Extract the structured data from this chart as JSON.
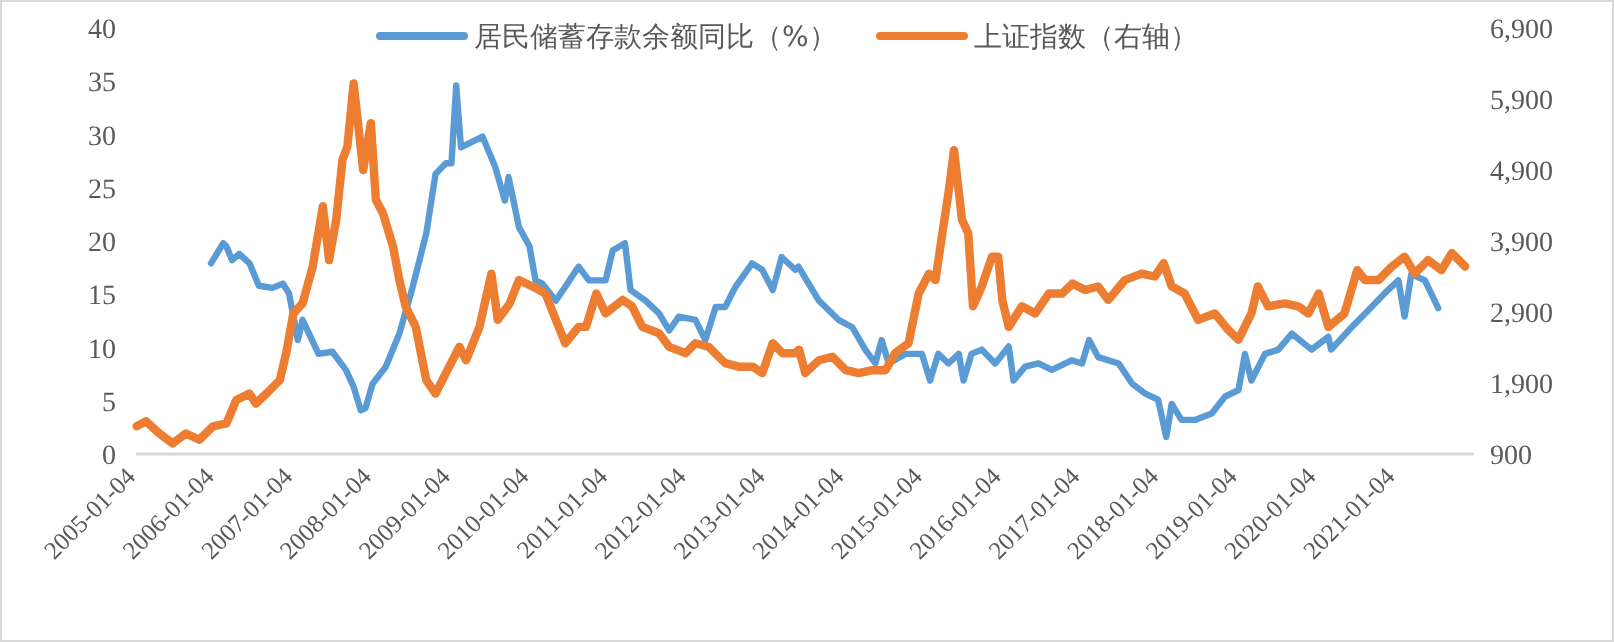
{
  "chart_data": {
    "type": "line",
    "legend": "top",
    "grid": false,
    "marker": "none",
    "line_style": "solid",
    "xlim": [
      "2005-01-01",
      "2022-01-01"
    ],
    "xticks": [
      "2005-01-04",
      "2006-01-04",
      "2007-01-04",
      "2008-01-04",
      "2009-01-04",
      "2010-01-04",
      "2011-01-04",
      "2012-01-04",
      "2013-01-04",
      "2014-01-04",
      "2015-01-04",
      "2016-01-04",
      "2017-01-04",
      "2018-01-04",
      "2019-01-04",
      "2020-01-04",
      "2021-01-04"
    ],
    "ylim": [
      0,
      40
    ],
    "yticks": [
      0,
      5,
      10,
      15,
      20,
      25,
      30,
      35,
      40
    ],
    "y2lim": [
      900,
      6900
    ],
    "y2ticks": [
      900,
      {
        "value": 1900,
        "label": "1,900"
      },
      {
        "value": 2900,
        "label": "2,900"
      },
      {
        "value": 3900,
        "label": "3,900"
      },
      {
        "value": 4900,
        "label": "4,900"
      },
      {
        "value": 5900,
        "label": "5,900"
      },
      {
        "value": 6900,
        "label": "6,900"
      }
    ],
    "series": [
      {
        "name": "居民储蓄存款余额同比（%）",
        "color": "#5b9bd5",
        "x": [
          "2005-12-15",
          "2006-02-10",
          "2006-02-24",
          "2006-03-23",
          "2006-04-25",
          "2006-06-12",
          "2006-07-25",
          "2006-09-26",
          "2006-11-13",
          "2006-12-12",
          "2007-01-22",
          "2007-02-13",
          "2007-04-28",
          "2007-07-01",
          "2007-09-02",
          "2007-10-08",
          "2007-11-10",
          "2007-12-02",
          "2008-01-04",
          "2008-03-05",
          "2008-05-07",
          "2008-07-08",
          "2008-09-09",
          "2008-10-22",
          "2008-12-09",
          "2009-01-04",
          "2009-01-26",
          "2009-02-17",
          "2009-05-28",
          "2009-07-25",
          "2009-09-09",
          "2009-09-26",
          "2009-11-13",
          "2010-01-01",
          "2010-01-29",
          "2010-03-02",
          "2010-05-03",
          "2010-06-16",
          "2010-08-17",
          "2010-10-04",
          "2010-12-20",
          "2011-01-22",
          "2011-03-20",
          "2011-04-15",
          "2011-06-23",
          "2011-08-25",
          "2011-10-11",
          "2011-11-25",
          "2012-02-10",
          "2012-03-27",
          "2012-05-14",
          "2012-06-27",
          "2012-08-14",
          "2012-10-30",
          "2012-12-16",
          "2013-02-03",
          "2013-03-16",
          "2013-05-18",
          "2013-06-02",
          "2013-09-05",
          "2013-12-05",
          "2014-02-07",
          "2014-04-08",
          "2014-05-25",
          "2014-06-23",
          "2014-07-26",
          "2014-10-11",
          "2014-12-27",
          "2015-02-03",
          "2015-03-13",
          "2015-04-29",
          "2015-06-16",
          "2015-07-08",
          "2015-08-14",
          "2015-10-01",
          "2015-12-02",
          "2016-02-03",
          "2016-02-25",
          "2016-04-19",
          "2016-06-20",
          "2016-08-21",
          "2016-11-21",
          "2017-01-08",
          "2017-02-10",
          "2017-03-24",
          "2017-06-27",
          "2017-08-29",
          "2017-10-26",
          "2017-12-27",
          "2018-02-03",
          "2018-02-28",
          "2018-04-15",
          "2018-06-16",
          "2018-09-02",
          "2018-11-03",
          "2019-01-04",
          "2019-02-03",
          "2019-03-05",
          "2019-05-07",
          "2019-07-08",
          "2019-09-09",
          "2019-12-09",
          "2020-02-25",
          "2020-03-09",
          "2020-06-12",
          "2020-08-14",
          "2020-11-13",
          "2021-01-15",
          "2021-02-13",
          "2021-03-16",
          "2021-05-18",
          "2021-07-19"
        ],
        "values": [
          17.9,
          19.8,
          19.5,
          18.2,
          18.8,
          17.9,
          15.8,
          15.6,
          16.0,
          15.1,
          10.7,
          12.6,
          9.4,
          9.6,
          7.9,
          6.3,
          4.1,
          4.3,
          6.6,
          8.2,
          11.3,
          15.7,
          20.7,
          26.3,
          27.3,
          27.3,
          34.6,
          28.8,
          29.8,
          27.0,
          23.8,
          26.0,
          21.3,
          19.5,
          16.3,
          16.0,
          14.4,
          15.7,
          17.6,
          16.3,
          16.3,
          19.1,
          19.8,
          15.4,
          14.4,
          13.2,
          11.6,
          12.9,
          12.6,
          10.7,
          13.8,
          13.8,
          15.7,
          17.9,
          17.3,
          15.4,
          18.5,
          17.3,
          17.6,
          14.4,
          12.6,
          11.9,
          9.8,
          8.5,
          10.7,
          8.5,
          9.4,
          9.4,
          6.9,
          9.4,
          8.5,
          9.4,
          6.9,
          9.4,
          9.8,
          8.5,
          10.1,
          6.9,
          8.2,
          8.5,
          7.9,
          8.8,
          8.5,
          10.7,
          9.1,
          8.5,
          6.6,
          5.7,
          5.1,
          1.6,
          4.7,
          3.2,
          3.2,
          3.8,
          5.4,
          6.0,
          9.4,
          6.9,
          9.4,
          9.8,
          11.3,
          9.8,
          11.0,
          9.8,
          11.9,
          13.2,
          15.1,
          16.3,
          12.9,
          16.9,
          16.3,
          13.7
        ]
      },
      {
        "name": "上证指数（右轴）",
        "color": "#ed7d31",
        "axis": "y2",
        "x": [
          "2005-01-04",
          "2005-02-17",
          "2005-04-19",
          "2005-06-20",
          "2005-08-21",
          "2005-10-22",
          "2005-12-24",
          "2006-02-25",
          "2006-04-11",
          "2006-06-12",
          "2006-07-11",
          "2006-08-29",
          "2006-10-30",
          "2006-11-29",
          "2007-01-01",
          "2007-02-13",
          "2007-04-01",
          "2007-05-18",
          "2007-06-16",
          "2007-07-19",
          "2007-08-17",
          "2007-09-09",
          "2007-10-08",
          "2007-11-21",
          "2007-12-27",
          "2008-01-19",
          "2008-02-21",
          "2008-04-08",
          "2008-05-07",
          "2008-06-05",
          "2008-07-22",
          "2008-09-09",
          "2008-10-22",
          "2008-12-09",
          "2009-02-10",
          "2009-03-13",
          "2009-05-14",
          "2009-07-08",
          "2009-08-07",
          "2009-10-01",
          "2009-11-13",
          "2010-01-15",
          "2010-03-16",
          "2010-05-03",
          "2010-06-16",
          "2010-08-17",
          "2010-09-20",
          "2010-11-07",
          "2010-12-20",
          "2011-03-09",
          "2011-04-22",
          "2011-06-09",
          "2011-08-25",
          "2011-10-11",
          "2011-12-27",
          "2012-02-10",
          "2012-04-11",
          "2012-06-27",
          "2012-08-29",
          "2012-11-03",
          "2012-12-16",
          "2013-02-03",
          "2013-03-20",
          "2013-05-18",
          "2013-06-05",
          "2013-07-04",
          "2013-09-05",
          "2013-11-07",
          "2014-01-08",
          "2014-03-09",
          "2014-05-10",
          "2014-07-11",
          "2014-08-25",
          "2014-10-26",
          "2014-12-12",
          "2015-01-29",
          "2015-02-28",
          "2015-04-01",
          "2015-04-29",
          "2015-05-25",
          "2015-07-01",
          "2015-07-30",
          "2015-08-21",
          "2015-10-01",
          "2015-11-17",
          "2015-12-16",
          "2016-01-04",
          "2016-02-03",
          "2016-04-04",
          "2016-06-05",
          "2016-08-07",
          "2016-10-08",
          "2016-11-25",
          "2017-01-22",
          "2017-03-24",
          "2017-05-10",
          "2017-07-26",
          "2017-10-11",
          "2017-12-12",
          "2018-01-22",
          "2018-02-28",
          "2018-04-29",
          "2018-07-01",
          "2018-09-16",
          "2018-11-17",
          "2019-01-04",
          "2019-03-05",
          "2019-04-04",
          "2019-05-21",
          "2019-08-07",
          "2019-10-08",
          "2019-11-25",
          "2020-01-11",
          "2020-02-25",
          "2020-05-10",
          "2020-07-08",
          "2020-08-14",
          "2020-10-15",
          "2020-12-16",
          "2021-02-13",
          "2021-04-01",
          "2021-06-02",
          "2021-08-03",
          "2021-09-20",
          "2021-11-21"
        ],
        "values": [
          1290,
          1360,
          1190,
          1050,
          1190,
          1100,
          1290,
          1330,
          1660,
          1750,
          1610,
          1750,
          1940,
          2320,
          2880,
          3020,
          3540,
          4390,
          3630,
          4200,
          5040,
          5230,
          6120,
          4900,
          5560,
          4480,
          4290,
          3820,
          3350,
          2980,
          2690,
          1940,
          1750,
          2040,
          2410,
          2220,
          2690,
          3440,
          2790,
          3020,
          3350,
          3260,
          3160,
          2790,
          2460,
          2690,
          2690,
          3160,
          2880,
          3070,
          2980,
          2690,
          2600,
          2410,
          2320,
          2460,
          2410,
          2180,
          2130,
          2130,
          2040,
          2460,
          2320,
          2320,
          2370,
          2040,
          2220,
          2270,
          2080,
          2040,
          2080,
          2080,
          2320,
          2460,
          3160,
          3440,
          3350,
          4010,
          4570,
          5180,
          4200,
          4010,
          2980,
          3260,
          3680,
          3680,
          3070,
          2690,
          2980,
          2880,
          3160,
          3160,
          3300,
          3210,
          3260,
          3070,
          3350,
          3440,
          3400,
          3590,
          3260,
          3160,
          2790,
          2880,
          2650,
          2510,
          2880,
          3260,
          2980,
          3020,
          2980,
          2880,
          3160,
          2690,
          2880,
          3490,
          3350,
          3350,
          3540,
          3680,
          3440,
          3630,
          3490,
          3730,
          3540
        ]
      }
    ]
  }
}
